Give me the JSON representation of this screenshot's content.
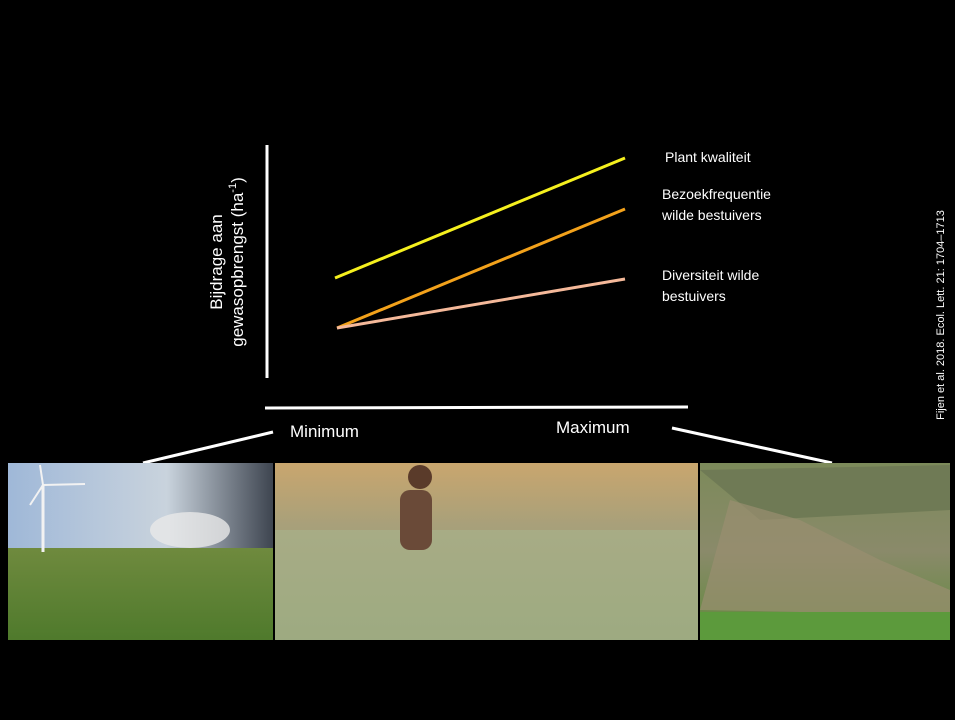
{
  "diagram": {
    "y_axis_label": {
      "line1": "Bijdrage aan",
      "line2": "gewasopbrengst (ha",
      "superscript": "-1",
      "line2_end": ")"
    },
    "x_axis_labels": {
      "left": "Minimum",
      "right": "Maximum"
    },
    "series_labels": [
      {
        "lines": [
          "Plant kwaliteit"
        ]
      },
      {
        "lines": [
          "Bezoekfrequentie",
          "wilde bestuivers"
        ]
      },
      {
        "lines": [
          "Diversiteit wilde",
          "bestuivers"
        ]
      }
    ],
    "citation": "Fijen et al. 2018. Ecol. Lett. 21: 1704–1713"
  }
}
